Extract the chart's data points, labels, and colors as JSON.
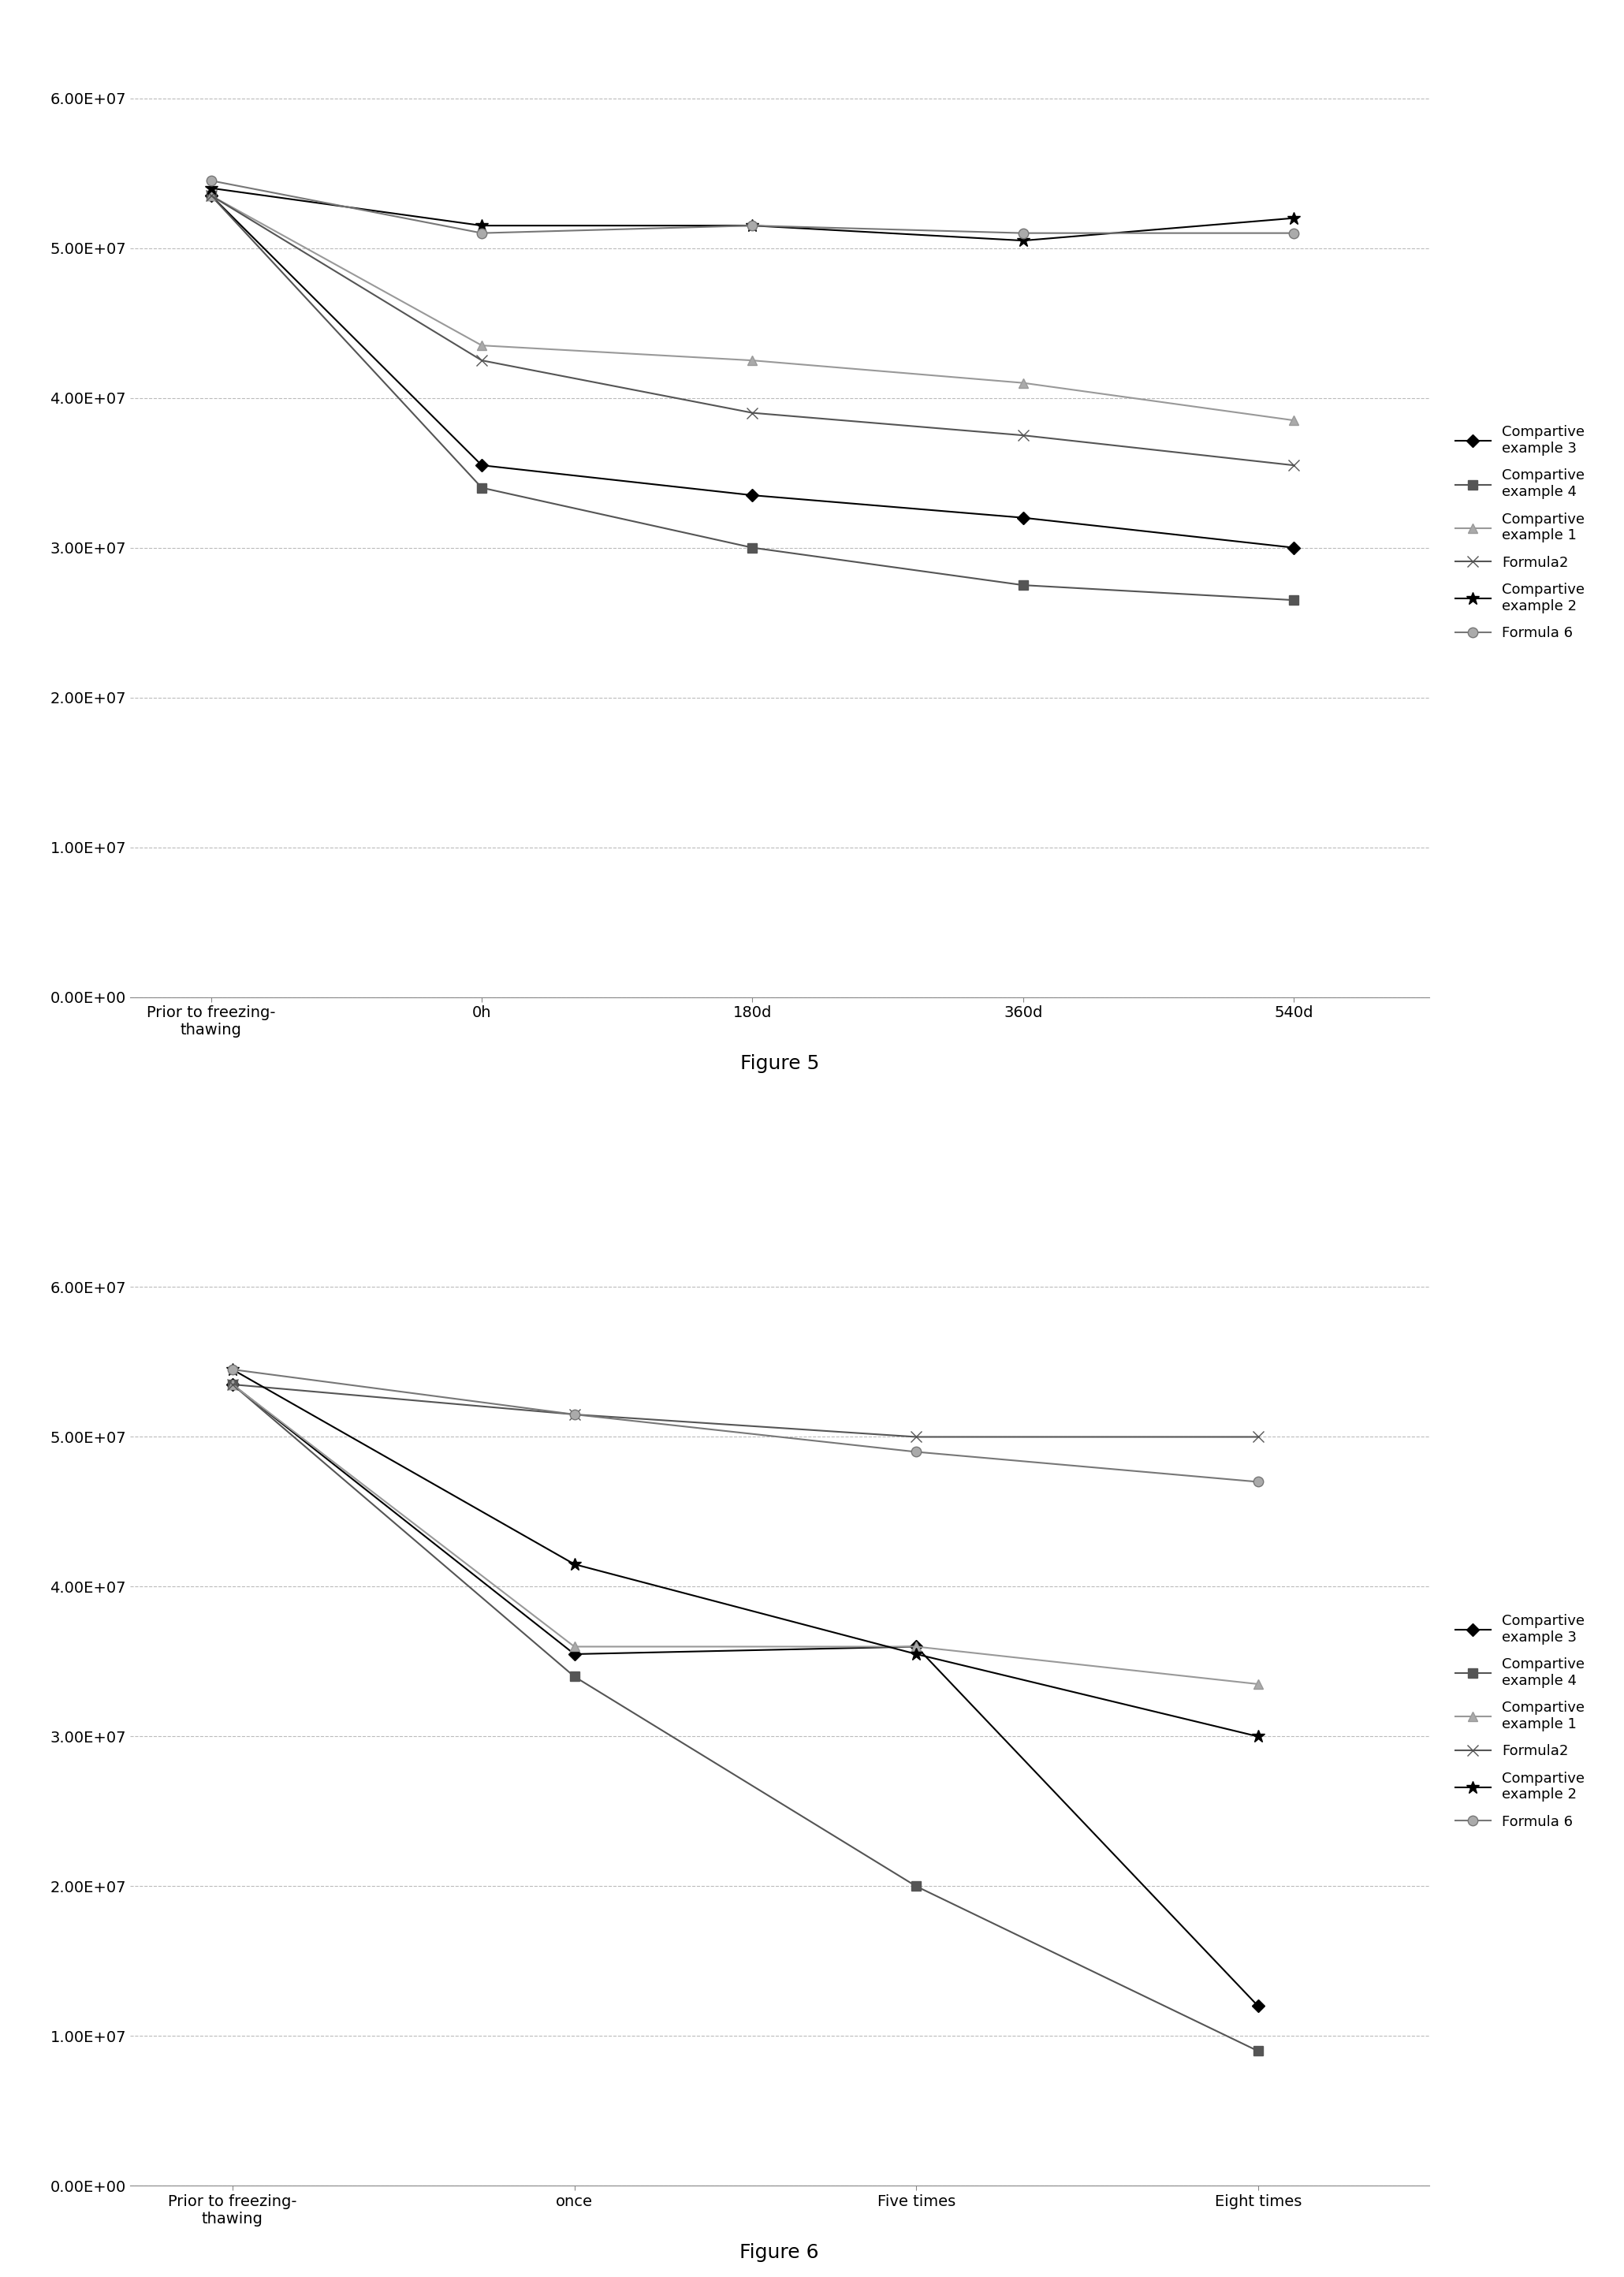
{
  "fig5": {
    "title": "Figure 5",
    "x_labels": [
      "Prior to freezing-\nthawing",
      "0h",
      "180d",
      "360d",
      "540d"
    ],
    "series": [
      {
        "label": "Compartive\nexample 3",
        "values": [
          53500000.0,
          35500000.0,
          33500000.0,
          32000000.0,
          30000000.0
        ],
        "color": "#000000",
        "marker": "D",
        "markersize": 8,
        "linestyle": "-",
        "linewidth": 1.5,
        "markerfacecolor": "#000000"
      },
      {
        "label": "Compartive\nexample 4",
        "values": [
          53500000.0,
          34000000.0,
          30000000.0,
          27500000.0,
          26500000.0
        ],
        "color": "#555555",
        "marker": "s",
        "markersize": 9,
        "linestyle": "-",
        "linewidth": 1.5,
        "markerfacecolor": "#555555"
      },
      {
        "label": "Compartive\nexample 1",
        "values": [
          53500000.0,
          43500000.0,
          42500000.0,
          41000000.0,
          38500000.0
        ],
        "color": "#999999",
        "marker": "^",
        "markersize": 9,
        "linestyle": "-",
        "linewidth": 1.5,
        "markerfacecolor": "#aaaaaa"
      },
      {
        "label": "Formula2",
        "values": [
          53500000.0,
          42500000.0,
          39000000.0,
          37500000.0,
          35500000.0
        ],
        "color": "#555555",
        "marker": "x",
        "markersize": 10,
        "linestyle": "-",
        "linewidth": 1.5,
        "markerfacecolor": "#555555"
      },
      {
        "label": "Compartive\nexample 2",
        "values": [
          54000000.0,
          51500000.0,
          51500000.0,
          50500000.0,
          52000000.0
        ],
        "color": "#000000",
        "marker": "*",
        "markersize": 12,
        "linestyle": "-",
        "linewidth": 1.5,
        "markerfacecolor": "#000000"
      },
      {
        "label": "Formula 6",
        "values": [
          54500000.0,
          51000000.0,
          51500000.0,
          51000000.0,
          51000000.0
        ],
        "color": "#777777",
        "marker": "o",
        "markersize": 9,
        "linestyle": "-",
        "linewidth": 1.5,
        "markerfacecolor": "#aaaaaa"
      }
    ],
    "ylim": [
      0,
      62000000.0
    ],
    "yticks": [
      0,
      10000000.0,
      20000000.0,
      30000000.0,
      40000000.0,
      50000000.0,
      60000000.0
    ],
    "ytick_labels": [
      "0.00E+00",
      "1.00E+07",
      "2.00E+07",
      "3.00E+07",
      "4.00E+07",
      "5.00E+07",
      "6.00E+07"
    ]
  },
  "fig6": {
    "title": "Figure 6",
    "x_labels": [
      "Prior to freezing-\nthawing",
      "once",
      "Five times",
      "Eight times"
    ],
    "series": [
      {
        "label": "Compartive\nexample 3",
        "values": [
          53500000.0,
          35500000.0,
          36000000.0,
          12000000.0
        ],
        "color": "#000000",
        "marker": "D",
        "markersize": 8,
        "linestyle": "-",
        "linewidth": 1.5,
        "markerfacecolor": "#000000"
      },
      {
        "label": "Compartive\nexample 4",
        "values": [
          53500000.0,
          34000000.0,
          20000000.0,
          9000000.0
        ],
        "color": "#555555",
        "marker": "s",
        "markersize": 9,
        "linestyle": "-",
        "linewidth": 1.5,
        "markerfacecolor": "#555555"
      },
      {
        "label": "Compartive\nexample 1",
        "values": [
          53500000.0,
          36000000.0,
          36000000.0,
          33500000.0
        ],
        "color": "#999999",
        "marker": "^",
        "markersize": 9,
        "linestyle": "-",
        "linewidth": 1.5,
        "markerfacecolor": "#aaaaaa"
      },
      {
        "label": "Formula2",
        "values": [
          53500000.0,
          51500000.0,
          50000000.0,
          50000000.0
        ],
        "color": "#555555",
        "marker": "x",
        "markersize": 10,
        "linestyle": "-",
        "linewidth": 1.5,
        "markerfacecolor": "#555555"
      },
      {
        "label": "Compartive\nexample 2",
        "values": [
          54500000.0,
          41500000.0,
          35500000.0,
          30000000.0
        ],
        "color": "#000000",
        "marker": "*",
        "markersize": 12,
        "linestyle": "-",
        "linewidth": 1.5,
        "markerfacecolor": "#000000"
      },
      {
        "label": "Formula 6",
        "values": [
          54500000.0,
          51500000.0,
          49000000.0,
          47000000.0
        ],
        "color": "#777777",
        "marker": "o",
        "markersize": 9,
        "linestyle": "-",
        "linewidth": 1.5,
        "markerfacecolor": "#aaaaaa"
      }
    ],
    "ylim": [
      0,
      62000000.0
    ],
    "yticks": [
      0,
      10000000.0,
      20000000.0,
      30000000.0,
      40000000.0,
      50000000.0,
      60000000.0
    ],
    "ytick_labels": [
      "0.00E+00",
      "1.00E+07",
      "2.00E+07",
      "3.00E+07",
      "4.00E+07",
      "5.00E+07",
      "6.00E+07"
    ]
  },
  "background_color": "#ffffff",
  "grid_color": "#bbbbbb",
  "legend_fontsize": 13,
  "tick_fontsize": 14,
  "figure_label_fontsize": 18
}
